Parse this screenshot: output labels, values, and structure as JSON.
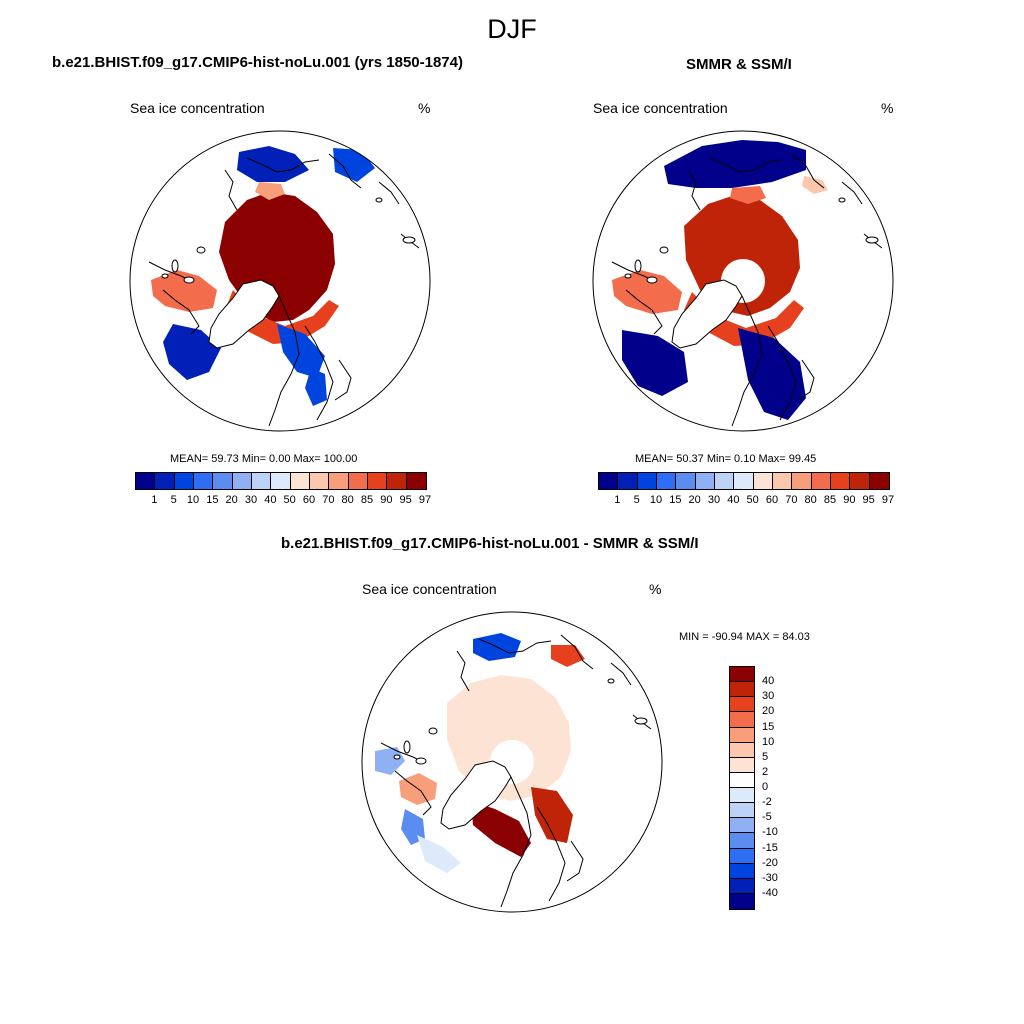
{
  "figure": {
    "title": "DJF"
  },
  "chart_data": [
    {
      "type": "heatmap",
      "panel": "model",
      "title": "b.e21.BHIST.f09_g17.CMIP6-hist-noLu.001 (yrs 1850-1874)",
      "left_label": "Sea ice concentration",
      "right_label": "%",
      "projection": "north polar stereographic",
      "stats": {
        "mean": "59.73",
        "min": "0.00",
        "max": "100.00",
        "text": "MEAN=  59.73  Min=   0.00  Max= 100.00"
      },
      "colorbar": {
        "orientation": "horizontal",
        "levels": [
          "1",
          "5",
          "10",
          "15",
          "20",
          "30",
          "40",
          "50",
          "60",
          "70",
          "80",
          "85",
          "90",
          "95",
          "97"
        ],
        "colors": [
          "#00008b",
          "#0020b8",
          "#0044e0",
          "#2d6ef5",
          "#5b8cf0",
          "#8fb0f3",
          "#bcd2f7",
          "#ddeafb",
          "#fde3d4",
          "#fbc7ad",
          "#f89e7b",
          "#f36d4c",
          "#e6401f",
          "#c02408",
          "#8b0000"
        ]
      }
    },
    {
      "type": "heatmap",
      "panel": "observations",
      "title": "SMMR & SSM/I",
      "left_label": "Sea ice concentration",
      "right_label": "%",
      "projection": "north polar stereographic",
      "stats": {
        "mean": "50.37",
        "min": "0.10",
        "max": "99.45",
        "text": "MEAN=  50.37  Min=   0.10  Max=  99.45"
      },
      "colorbar": {
        "orientation": "horizontal",
        "levels": [
          "1",
          "5",
          "10",
          "15",
          "20",
          "30",
          "40",
          "50",
          "60",
          "70",
          "80",
          "85",
          "90",
          "95",
          "97"
        ],
        "colors": [
          "#00008b",
          "#0020b8",
          "#0044e0",
          "#2d6ef5",
          "#5b8cf0",
          "#8fb0f3",
          "#bcd2f7",
          "#ddeafb",
          "#fde3d4",
          "#fbc7ad",
          "#f89e7b",
          "#f36d4c",
          "#e6401f",
          "#c02408",
          "#8b0000"
        ]
      }
    },
    {
      "type": "heatmap",
      "panel": "difference",
      "title": "b.e21.BHIST.f09_g17.CMIP6-hist-noLu.001 - SMMR & SSM/I",
      "left_label": "Sea ice concentration",
      "right_label": "%",
      "projection": "north polar stereographic",
      "stats": {
        "min": "-90.94",
        "max": "84.03",
        "text": "MIN = -90.94 MAX =  84.03"
      },
      "colorbar": {
        "orientation": "vertical",
        "levels": [
          "40",
          "30",
          "20",
          "15",
          "10",
          "5",
          "2",
          "0",
          "-2",
          "-5",
          "-10",
          "-15",
          "-20",
          "-30",
          "-40"
        ],
        "colors": [
          "#8b0000",
          "#c02408",
          "#e6401f",
          "#f36d4c",
          "#f89e7b",
          "#fbc7ad",
          "#fde3d4",
          "#ffffff",
          "#ddeafb",
          "#bcd2f7",
          "#8fb0f3",
          "#5b8cf0",
          "#2d6ef5",
          "#0044e0",
          "#0020b8",
          "#00008b"
        ]
      }
    }
  ]
}
